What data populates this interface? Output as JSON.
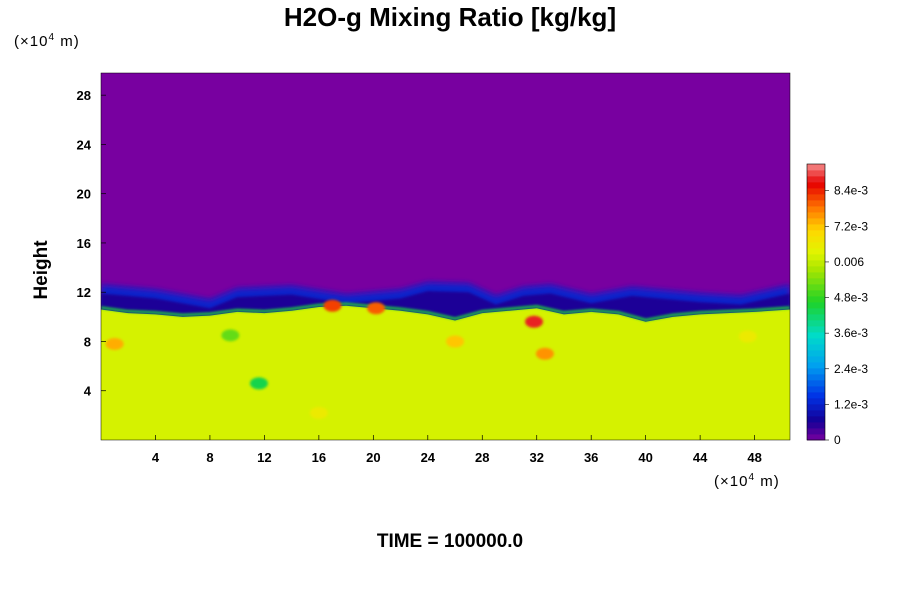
{
  "chart_data": {
    "type": "heatmap",
    "title": "H2O-g Mixing Ratio [kg/kg]",
    "ylabel": "Height",
    "x_unit": "m",
    "y_unit": "m",
    "unit_multiplier": "×10",
    "unit_exponent": "4",
    "x_ticks": [
      4,
      8,
      12,
      16,
      20,
      24,
      28,
      32,
      36,
      40,
      44,
      48
    ],
    "y_ticks": [
      4,
      8,
      12,
      16,
      20,
      24,
      28
    ],
    "xlim": [
      0,
      50.6
    ],
    "ylim": [
      0,
      29.8
    ],
    "colorbar": {
      "ticks": [
        "0",
        "1.2e-3",
        "2.4e-3",
        "3.6e-3",
        "4.8e-3",
        "0.006",
        "7.2e-3",
        "8.4e-3"
      ],
      "tick_values": [
        0,
        0.0012,
        0.0024,
        0.0036,
        0.0048,
        0.006,
        0.0072,
        0.0084
      ],
      "range": [
        0,
        0.0093
      ]
    },
    "fields": {
      "upper_value": 0,
      "lower_value": 0.0062,
      "interface_height": [
        [
          0,
          10.6
        ],
        [
          2,
          10.3
        ],
        [
          4,
          10.2
        ],
        [
          6,
          10.0
        ],
        [
          8,
          10.1
        ],
        [
          10,
          10.4
        ],
        [
          12,
          10.3
        ],
        [
          14,
          10.5
        ],
        [
          16,
          10.8
        ],
        [
          18,
          10.9
        ],
        [
          20,
          10.7
        ],
        [
          22,
          10.5
        ],
        [
          24,
          10.2
        ],
        [
          26,
          9.7
        ],
        [
          28,
          10.3
        ],
        [
          30,
          10.5
        ],
        [
          32,
          10.7
        ],
        [
          34,
          10.2
        ],
        [
          36,
          10.4
        ],
        [
          38,
          10.2
        ],
        [
          40,
          9.6
        ],
        [
          42,
          10.0
        ],
        [
          44,
          10.2
        ],
        [
          46,
          10.3
        ],
        [
          48,
          10.4
        ],
        [
          50.6,
          10.6
        ]
      ],
      "moist_layer_top": [
        [
          0,
          12.6
        ],
        [
          4,
          12.2
        ],
        [
          8,
          11.4
        ],
        [
          10,
          12.3
        ],
        [
          14,
          12.5
        ],
        [
          18,
          11.8
        ],
        [
          22,
          12.2
        ],
        [
          24,
          12.8
        ],
        [
          27,
          12.7
        ],
        [
          29,
          11.7
        ],
        [
          31,
          12.4
        ],
        [
          33,
          12.6
        ],
        [
          36,
          11.8
        ],
        [
          39,
          12.4
        ],
        [
          41,
          12.2
        ],
        [
          44,
          11.9
        ],
        [
          47,
          11.7
        ],
        [
          50.6,
          12.6
        ]
      ],
      "moist_patches": [
        {
          "x": 1.0,
          "y": 7.8,
          "value": 0.0074
        },
        {
          "x": 11.6,
          "y": 4.6,
          "value": 0.0044
        },
        {
          "x": 17.0,
          "y": 10.9,
          "value": 0.0082
        },
        {
          "x": 20.2,
          "y": 10.7,
          "value": 0.008
        },
        {
          "x": 26.0,
          "y": 8.0,
          "value": 0.0072
        },
        {
          "x": 31.8,
          "y": 9.6,
          "value": 0.0088
        },
        {
          "x": 32.6,
          "y": 7.0,
          "value": 0.0076
        },
        {
          "x": 47.5,
          "y": 8.4,
          "value": 0.0066
        },
        {
          "x": 16.0,
          "y": 2.2,
          "value": 0.0066
        },
        {
          "x": 9.5,
          "y": 8.5,
          "value": 0.0052
        }
      ]
    }
  },
  "footer": {
    "time_label": "TIME = 100000.0"
  }
}
